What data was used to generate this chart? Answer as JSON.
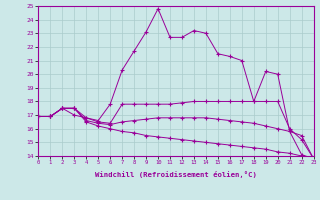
{
  "xlabel": "Windchill (Refroidissement éolien,°C)",
  "xlim": [
    0,
    23
  ],
  "ylim": [
    14,
    25
  ],
  "yticks": [
    14,
    15,
    16,
    17,
    18,
    19,
    20,
    21,
    22,
    23,
    24,
    25
  ],
  "xticks": [
    0,
    1,
    2,
    3,
    4,
    5,
    6,
    7,
    8,
    9,
    10,
    11,
    12,
    13,
    14,
    15,
    16,
    17,
    18,
    19,
    20,
    21,
    22,
    23
  ],
  "bg_color": "#cce8e8",
  "grid_color": "#aacccc",
  "line_color": "#990099",
  "curves": [
    {
      "x": [
        0,
        1,
        2,
        3,
        4,
        5,
        6,
        7,
        8,
        9,
        10,
        11,
        12,
        13,
        14,
        15,
        16,
        17,
        18,
        19,
        20,
        21,
        22,
        23
      ],
      "y": [
        16.9,
        16.9,
        17.5,
        17.0,
        16.8,
        16.6,
        17.8,
        20.3,
        21.7,
        23.1,
        24.8,
        22.7,
        22.7,
        23.2,
        23.0,
        21.5,
        21.3,
        21.0,
        18.0,
        20.2,
        20.0,
        15.8,
        14.1,
        13.8
      ]
    },
    {
      "x": [
        0,
        1,
        2,
        3,
        4,
        5,
        6,
        7,
        8,
        9,
        10,
        11,
        12,
        13,
        14,
        15,
        16,
        17,
        18,
        19,
        20,
        21,
        22,
        23
      ],
      "y": [
        16.9,
        16.9,
        17.5,
        17.5,
        16.8,
        16.5,
        16.4,
        17.8,
        17.8,
        17.8,
        17.8,
        17.8,
        17.9,
        18.0,
        18.0,
        18.0,
        18.0,
        18.0,
        18.0,
        18.0,
        18.0,
        16.0,
        15.2,
        13.8
      ]
    },
    {
      "x": [
        0,
        1,
        2,
        3,
        4,
        5,
        6,
        7,
        8,
        9,
        10,
        11,
        12,
        13,
        14,
        15,
        16,
        17,
        18,
        19,
        20,
        21,
        22,
        23
      ],
      "y": [
        16.9,
        16.9,
        17.5,
        17.5,
        16.6,
        16.4,
        16.3,
        16.5,
        16.6,
        16.7,
        16.8,
        16.8,
        16.8,
        16.8,
        16.8,
        16.7,
        16.6,
        16.5,
        16.4,
        16.2,
        16.0,
        15.8,
        15.5,
        13.8
      ]
    },
    {
      "x": [
        0,
        1,
        2,
        3,
        4,
        5,
        6,
        7,
        8,
        9,
        10,
        11,
        12,
        13,
        14,
        15,
        16,
        17,
        18,
        19,
        20,
        21,
        22,
        23
      ],
      "y": [
        16.9,
        16.9,
        17.5,
        17.5,
        16.5,
        16.2,
        16.0,
        15.8,
        15.7,
        15.5,
        15.4,
        15.3,
        15.2,
        15.1,
        15.0,
        14.9,
        14.8,
        14.7,
        14.6,
        14.5,
        14.3,
        14.2,
        14.0,
        13.8
      ]
    }
  ]
}
